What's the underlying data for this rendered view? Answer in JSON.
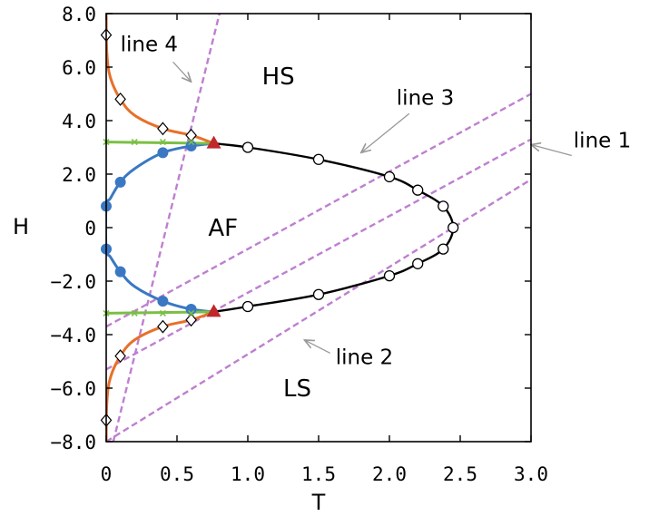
{
  "chart_data": {
    "type": "line",
    "xlabel": "T",
    "ylabel": "H",
    "xlim": [
      0,
      3.0
    ],
    "ylim": [
      -8.0,
      8.0
    ],
    "x_ticks": [
      0,
      0.5,
      1.0,
      1.5,
      2.0,
      2.5,
      3.0
    ],
    "x_tick_labels": [
      "0",
      "0.5",
      "1.0",
      "1.5",
      "2.0",
      "2.5",
      "3.0"
    ],
    "y_ticks": [
      8.0,
      6.0,
      4.0,
      2.0,
      0,
      -2.0,
      -4.0,
      -6.0,
      -8.0
    ],
    "y_tick_labels": [
      "8.0",
      "6.0",
      "4.0",
      "2.0",
      "0",
      "−2.0",
      "−4.0",
      "−6.0",
      "−8.0"
    ],
    "region_labels": [
      {
        "text": "HS",
        "x": 1.1,
        "y": 5.35
      },
      {
        "text": "AF",
        "x": 0.72,
        "y": -0.3
      },
      {
        "text": "LS",
        "x": 1.25,
        "y": -6.3
      }
    ],
    "series": [
      {
        "color": "#000000",
        "marker": "circle-open",
        "points": [
          [
            1.0,
            3.0
          ],
          [
            1.5,
            2.55
          ],
          [
            2.0,
            1.9
          ],
          [
            2.2,
            1.4
          ],
          [
            2.38,
            0.8
          ],
          [
            2.45,
            0.0
          ],
          [
            2.38,
            -0.8
          ],
          [
            2.2,
            -1.35
          ],
          [
            2.0,
            -1.8
          ],
          [
            1.5,
            -2.5
          ],
          [
            1.0,
            -2.95
          ]
        ],
        "curve": [
          [
            0.76,
            3.15
          ],
          [
            1.0,
            3.0
          ],
          [
            1.5,
            2.55
          ],
          [
            2.0,
            1.9
          ],
          [
            2.2,
            1.4
          ],
          [
            2.38,
            0.8
          ],
          [
            2.45,
            0.0
          ],
          [
            2.38,
            -0.8
          ],
          [
            2.2,
            -1.35
          ],
          [
            2.0,
            -1.8
          ],
          [
            1.5,
            -2.5
          ],
          [
            1.0,
            -2.95
          ],
          [
            0.76,
            -3.15
          ]
        ]
      },
      {
        "color": "#3a78c3",
        "marker": "circle-filled",
        "points": [
          [
            0.0,
            0.8
          ],
          [
            0.1,
            1.7
          ],
          [
            0.4,
            2.8
          ],
          [
            0.6,
            3.05
          ],
          [
            0.6,
            -3.05
          ],
          [
            0.4,
            -2.75
          ],
          [
            0.1,
            -1.65
          ],
          [
            0.0,
            -0.8
          ]
        ],
        "curve": [
          [
            0.76,
            3.15
          ],
          [
            0.6,
            3.05
          ],
          [
            0.4,
            2.8
          ],
          [
            0.2,
            2.2
          ],
          [
            0.1,
            1.7
          ],
          [
            0.03,
            1.1
          ],
          [
            0.0,
            0.8
          ],
          [
            0.0,
            -0.8
          ],
          [
            0.03,
            -1.1
          ],
          [
            0.1,
            -1.65
          ],
          [
            0.2,
            -2.2
          ],
          [
            0.4,
            -2.75
          ],
          [
            0.6,
            -3.05
          ],
          [
            0.76,
            -3.15
          ]
        ]
      },
      {
        "color": "#e8702a",
        "marker": "diamond-open",
        "points": [
          [
            0.0,
            7.2
          ],
          [
            0.1,
            4.8
          ],
          [
            0.4,
            3.7
          ],
          [
            0.6,
            3.45
          ],
          [
            0.6,
            -3.45
          ],
          [
            0.4,
            -3.7
          ],
          [
            0.1,
            -4.8
          ],
          [
            0.0,
            -7.2
          ]
        ],
        "curve": [
          [
            0.0,
            8.0
          ],
          [
            0.005,
            6.5
          ],
          [
            0.03,
            5.6
          ],
          [
            0.1,
            4.8
          ],
          [
            0.2,
            4.2
          ],
          [
            0.4,
            3.7
          ],
          [
            0.6,
            3.45
          ],
          [
            0.76,
            3.15
          ]
        ],
        "curve_lower": [
          [
            0.0,
            -8.0
          ],
          [
            0.005,
            -6.5
          ],
          [
            0.03,
            -5.6
          ],
          [
            0.1,
            -4.8
          ],
          [
            0.2,
            -4.2
          ],
          [
            0.4,
            -3.7
          ],
          [
            0.6,
            -3.45
          ],
          [
            0.76,
            -3.15
          ]
        ]
      },
      {
        "color": "#7bbf44",
        "marker": "cross",
        "points": [
          [
            0.0,
            3.2
          ],
          [
            0.2,
            3.2
          ],
          [
            0.4,
            3.2
          ],
          [
            0.6,
            3.2
          ],
          [
            0.0,
            -3.2
          ],
          [
            0.2,
            -3.2
          ],
          [
            0.4,
            -3.2
          ],
          [
            0.6,
            -3.2
          ]
        ],
        "curve": [
          [
            0.0,
            3.2
          ],
          [
            0.76,
            3.15
          ]
        ],
        "curve_lower": [
          [
            0.0,
            -3.2
          ],
          [
            0.76,
            -3.15
          ]
        ]
      },
      {
        "color": "#c0282a",
        "marker": "triangle-filled",
        "points": [
          [
            0.76,
            3.15
          ],
          [
            0.76,
            -3.15
          ]
        ]
      }
    ],
    "dashed_lines": [
      {
        "label": "line 1",
        "color": "#bf7fd0",
        "from": [
          0.0,
          -5.3
        ],
        "to": [
          3.0,
          3.3
        ],
        "label_pos": [
          3.3,
          3.0
        ],
        "arrow_to": [
          3.0,
          3.1
        ]
      },
      {
        "label": "line 2",
        "color": "#bf7fd0",
        "from": [
          0.0,
          -8.0
        ],
        "to": [
          3.0,
          1.8
        ],
        "label_pos": [
          1.62,
          -5.1
        ],
        "arrow_to": [
          1.4,
          -4.2
        ]
      },
      {
        "label": "line 3",
        "color": "#bf7fd0",
        "from": [
          0.0,
          -3.7
        ],
        "to": [
          3.0,
          5.0
        ],
        "label_pos": [
          2.05,
          4.6
        ],
        "arrow_to": [
          1.8,
          2.8
        ]
      },
      {
        "label": "line 4",
        "color": "#bf7fd0",
        "from": [
          0.05,
          -8.0
        ],
        "to": [
          0.8,
          8.0
        ],
        "label_pos": [
          0.1,
          6.6
        ],
        "arrow_to": [
          0.6,
          5.45
        ]
      }
    ]
  }
}
